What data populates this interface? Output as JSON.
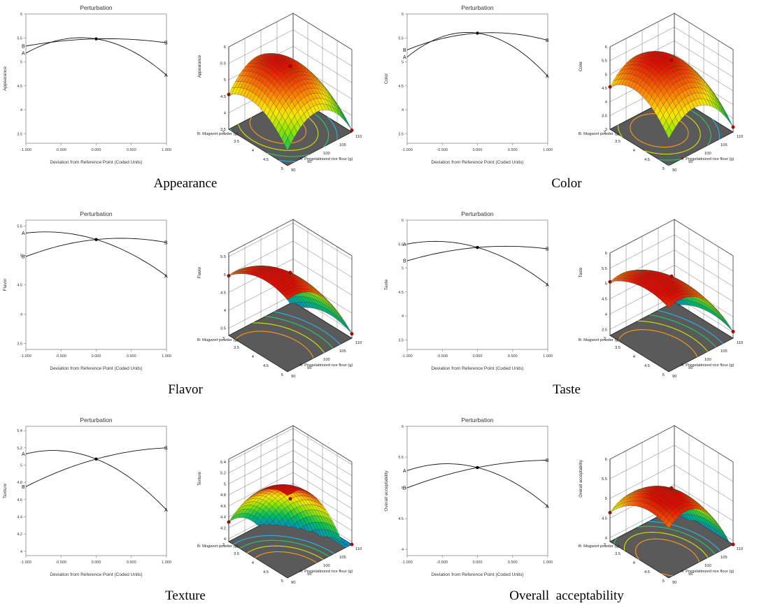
{
  "chart_data": [
    {
      "type": "line",
      "id": "appearance",
      "caption": "Appearance",
      "perturbation": {
        "title": "Perturbation",
        "xlabel": "Deviation from Reference Point (Coded Units)",
        "ylabel": "Appearance",
        "xlim": [
          -1.0,
          1.0
        ],
        "ylim": [
          3.3,
          6.0
        ],
        "xticks": [
          "-1.000",
          "-0.500",
          "0.000",
          "0.500",
          "1.000"
        ],
        "yticks": [
          "3.5",
          "4",
          "4.5",
          "5",
          "5.5",
          "6"
        ],
        "series": [
          {
            "name": "A",
            "x": [
              -1.0,
              -0.5,
              0.0,
              0.5,
              1.0
            ],
            "y": [
              5.18,
              5.4,
              5.48,
              5.25,
              4.72
            ]
          },
          {
            "name": "B",
            "x": [
              -1.0,
              -0.5,
              0.0,
              0.5,
              1.0
            ],
            "y": [
              5.33,
              5.43,
              5.48,
              5.45,
              5.4
            ]
          }
        ],
        "reference_point": {
          "x": 0.0,
          "y": 5.48
        }
      },
      "surface": {
        "zlabel": "Appearance",
        "xlabel": "A: Pregelatinized rice flour (g)",
        "ylabel": "B: Mugwort powder (g)",
        "zticks": [
          "3.5",
          "4",
          "4.5",
          "5",
          "5.5",
          "6"
        ],
        "xticks": [
          "90",
          "95",
          "100",
          "105",
          "110"
        ],
        "yticks": [
          "3",
          "3.5",
          "4",
          "4.5",
          "5"
        ],
        "zlim": [
          3.5,
          6.0
        ],
        "peak": {
          "a": 0.0,
          "b": -0.3,
          "z": 5.5
        },
        "curvature": {
          "a": 0.9,
          "b": 0.5
        },
        "tilt": {
          "a": -0.2,
          "b": 0.0
        }
      }
    },
    {
      "type": "line",
      "id": "color",
      "caption": "Color",
      "perturbation": {
        "title": "Perturbation",
        "xlabel": "Deviation from Reference Point (Coded Units)",
        "ylabel": "Color",
        "xlim": [
          -1.0,
          1.0
        ],
        "ylim": [
          3.3,
          6.0
        ],
        "xticks": [
          "-1.000",
          "-0.500",
          "0.000",
          "0.500",
          "1.000"
        ],
        "yticks": [
          "3.5",
          "4",
          "4.5",
          "5",
          "5.5",
          "6"
        ],
        "series": [
          {
            "name": "A",
            "x": [
              -1.0,
              -0.5,
              0.0,
              0.5,
              1.0
            ],
            "y": [
              5.1,
              5.45,
              5.6,
              5.35,
              4.7
            ]
          },
          {
            "name": "B",
            "x": [
              -1.0,
              -0.5,
              0.0,
              0.5,
              1.0
            ],
            "y": [
              5.25,
              5.5,
              5.6,
              5.58,
              5.45
            ]
          }
        ],
        "reference_point": {
          "x": 0.0,
          "y": 5.6
        }
      },
      "surface": {
        "zlabel": "Color",
        "xlabel": "A: Pregelatinized rice flour (g)",
        "ylabel": "B: Mugwort powder (g)",
        "zticks": [
          "3",
          "3.5",
          "4",
          "4.5",
          "5",
          "5.5",
          "6"
        ],
        "xticks": [
          "90",
          "95",
          "100",
          "105",
          "110"
        ],
        "yticks": [
          "3",
          "3.5",
          "4",
          "4.5",
          "5"
        ],
        "zlim": [
          3.0,
          6.0
        ],
        "peak": {
          "a": -0.1,
          "b": -0.2,
          "z": 5.6
        },
        "curvature": {
          "a": 1.0,
          "b": 0.7
        },
        "tilt": {
          "a": -0.2,
          "b": 0.0
        }
      }
    },
    {
      "type": "line",
      "id": "flavor",
      "caption": "Flavor",
      "perturbation": {
        "title": "Perturbation",
        "xlabel": "Deviation from Reference Point (Coded Units)",
        "ylabel": "Flavor",
        "xlim": [
          -1.0,
          1.0
        ],
        "ylim": [
          3.4,
          5.6
        ],
        "xticks": [
          "-1.000",
          "-0.500",
          "0.000",
          "0.500",
          "1.000"
        ],
        "yticks": [
          "3.5",
          "4",
          "4.5",
          "5",
          "5.5"
        ],
        "series": [
          {
            "name": "A",
            "x": [
              -1.0,
              -0.5,
              0.0,
              0.5,
              1.0
            ],
            "y": [
              5.38,
              5.38,
              5.27,
              5.02,
              4.65
            ]
          },
          {
            "name": "B",
            "x": [
              -1.0,
              -0.5,
              0.0,
              0.5,
              1.0
            ],
            "y": [
              4.98,
              5.17,
              5.27,
              5.27,
              5.22
            ]
          }
        ],
        "reference_point": {
          "x": 0.0,
          "y": 5.27
        }
      },
      "surface": {
        "zlabel": "Flavor",
        "xlabel": "A: Pregelatinized rice flour (g)",
        "ylabel": "B: Mugwort powder (g)",
        "zticks": [
          "3.5",
          "4",
          "4.5",
          "5",
          "5.5"
        ],
        "xticks": [
          "90",
          "95",
          "100",
          "105",
          "110"
        ],
        "yticks": [
          "3",
          "3.5",
          "4",
          "4.5",
          "5"
        ],
        "zlim": [
          3.3,
          5.6
        ],
        "peak": {
          "a": -0.7,
          "b": 0.2,
          "z": 5.4
        },
        "curvature": {
          "a": 0.6,
          "b": 0.3
        },
        "tilt": {
          "a": -0.1,
          "b": 0.05
        }
      }
    },
    {
      "type": "line",
      "id": "taste",
      "caption": "Taste",
      "perturbation": {
        "title": "Perturbation",
        "xlabel": "Deviation from Reference Point (Coded Units)",
        "ylabel": "Taste",
        "xlim": [
          -1.0,
          1.0
        ],
        "ylim": [
          3.3,
          6.0
        ],
        "xticks": [
          "-1.000",
          "-0.500",
          "0.000",
          "0.500",
          "1.000"
        ],
        "yticks": [
          "3.5",
          "4",
          "4.5",
          "5",
          "5.5",
          "6"
        ],
        "series": [
          {
            "name": "A",
            "x": [
              -1.0,
              -0.5,
              0.0,
              0.5,
              1.0
            ],
            "y": [
              5.5,
              5.55,
              5.43,
              5.1,
              4.65
            ]
          },
          {
            "name": "B",
            "x": [
              -1.0,
              -0.5,
              0.0,
              0.5,
              1.0
            ],
            "y": [
              5.15,
              5.33,
              5.43,
              5.45,
              5.4
            ]
          }
        ],
        "reference_point": {
          "x": 0.0,
          "y": 5.43
        }
      },
      "surface": {
        "zlabel": "Taste",
        "xlabel": "A: Pregelatinized rice flour (g)",
        "ylabel": "B: Mugwort powder (g)",
        "zticks": [
          "3.5",
          "4",
          "4.5",
          "5",
          "5.5",
          "6"
        ],
        "xticks": [
          "90",
          "95",
          "100",
          "105",
          "110"
        ],
        "yticks": [
          "3",
          "3.5",
          "4",
          "4.5",
          "5"
        ],
        "zlim": [
          3.3,
          6.0
        ],
        "peak": {
          "a": -0.6,
          "b": 0.2,
          "z": 5.55
        },
        "curvature": {
          "a": 0.7,
          "b": 0.3
        },
        "tilt": {
          "a": -0.1,
          "b": 0.05
        }
      }
    },
    {
      "type": "line",
      "id": "texture",
      "caption": "Texture",
      "perturbation": {
        "title": "Perturbation",
        "xlabel": "Deviation from Reference Point (Coded Units)",
        "ylabel": "Texture",
        "xlim": [
          -1.0,
          1.0
        ],
        "ylim": [
          3.95,
          5.45
        ],
        "xticks": [
          "-1.000",
          "-0.500",
          "0.000",
          "0.500",
          "1.000"
        ],
        "yticks": [
          "4",
          "4.2",
          "4.4",
          "4.6",
          "4.8",
          "5",
          "5.2",
          "5.4"
        ],
        "series": [
          {
            "name": "A",
            "x": [
              -1.0,
              -0.5,
              0.0,
              0.5,
              1.0
            ],
            "y": [
              5.13,
              5.16,
              5.07,
              4.85,
              4.48
            ]
          },
          {
            "name": "B",
            "x": [
              -1.0,
              -0.5,
              0.0,
              0.5,
              1.0
            ],
            "y": [
              4.75,
              4.95,
              5.07,
              5.15,
              5.2
            ]
          }
        ],
        "reference_point": {
          "x": 0.0,
          "y": 5.07
        }
      },
      "surface": {
        "zlabel": "Texture",
        "xlabel": "A: Pregelatinized rice flour (g)",
        "ylabel": "B: Mugwort powder (g)",
        "zticks": [
          "4",
          "4.2",
          "4.4",
          "4.6",
          "4.8",
          "5",
          "5.2",
          "5.4"
        ],
        "xticks": [
          "90",
          "95",
          "100",
          "105",
          "110"
        ],
        "yticks": [
          "3",
          "3.5",
          "4",
          "4.5",
          "5"
        ],
        "zlim": [
          3.95,
          5.45
        ],
        "peak": {
          "a": -0.8,
          "b": 0.8,
          "z": 5.3
        },
        "curvature": {
          "a": 0.55,
          "b": 0.3
        },
        "tilt": {
          "a": -0.1,
          "b": 0.1
        }
      }
    },
    {
      "type": "line",
      "id": "overall-acceptability",
      "caption": "Overall  acceptability",
      "perturbation": {
        "title": "Perturbation",
        "xlabel": "Deviation from Reference Point (Coded Units)",
        "ylabel": "Overall acceptability",
        "xlim": [
          -1.0,
          1.0
        ],
        "ylim": [
          3.9,
          6.0
        ],
        "xticks": [
          "-1.000",
          "-0.500",
          "0.000",
          "0.500",
          "1.000"
        ],
        "yticks": [
          "4",
          "4.5",
          "5",
          "5.5",
          "6"
        ],
        "series": [
          {
            "name": "A",
            "x": [
              -1.0,
              -0.5,
              0.0,
              0.5,
              1.0
            ],
            "y": [
              5.28,
              5.38,
              5.33,
              5.1,
              4.7
            ]
          },
          {
            "name": "B",
            "x": [
              -1.0,
              -0.5,
              0.0,
              0.5,
              1.0
            ],
            "y": [
              5.0,
              5.2,
              5.33,
              5.42,
              5.45
            ]
          }
        ],
        "reference_point": {
          "x": 0.0,
          "y": 5.33
        }
      },
      "surface": {
        "zlabel": "Overall acceptability",
        "xlabel": "A: Pregelatinized rice flour (g)",
        "ylabel": "B: Mugwort powder (g)",
        "zticks": [
          "4",
          "4.5",
          "5",
          "5.5",
          "6"
        ],
        "xticks": [
          "90",
          "95",
          "100",
          "105",
          "110"
        ],
        "yticks": [
          "3",
          "3.5",
          "4",
          "4.5",
          "5"
        ],
        "zlim": [
          3.9,
          6.0
        ],
        "peak": {
          "a": -0.4,
          "b": 0.3,
          "z": 5.45
        },
        "curvature": {
          "a": 0.75,
          "b": 0.35
        },
        "tilt": {
          "a": -0.1,
          "b": 0.05
        }
      }
    }
  ]
}
